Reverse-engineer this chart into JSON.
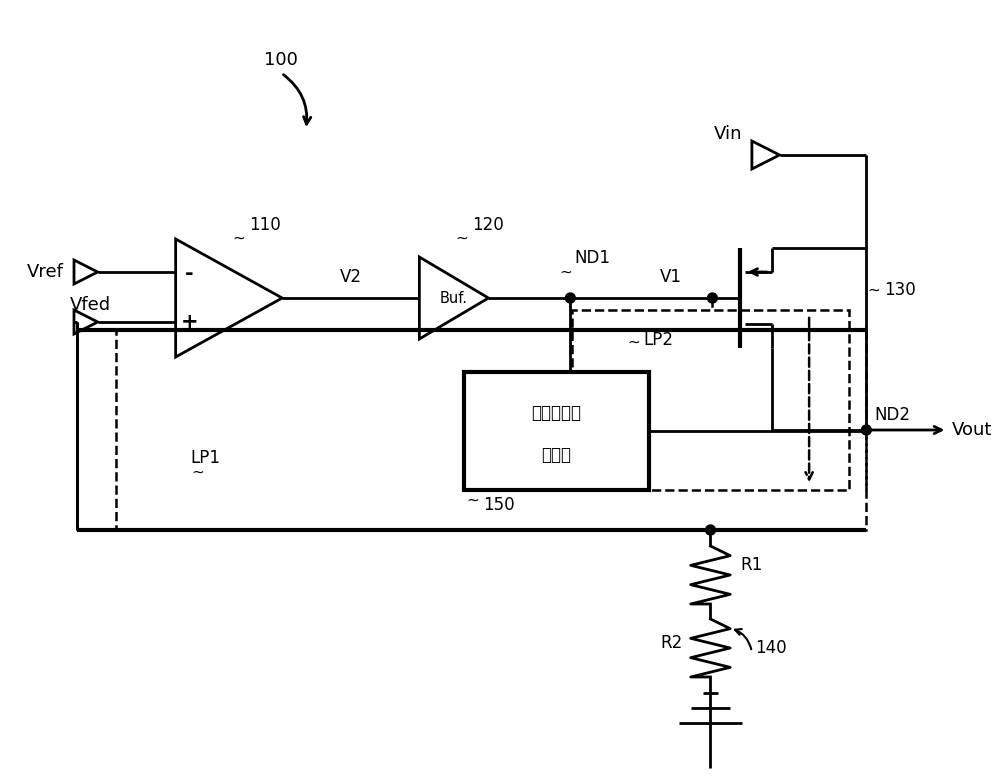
{
  "bg": "#ffffff",
  "figsize": [
    10.0,
    7.79
  ],
  "dpi": 100,
  "labels": {
    "r100": "100",
    "r110": "110",
    "r120": "120",
    "nd1": "ND1",
    "nd2": "ND2",
    "v1": "V1",
    "v2": "V2",
    "vin": "Vin",
    "vref": "Vref",
    "vfed": "Vfed",
    "vout": "Vout",
    "lp1": "LP1",
    "lp2": "LP2",
    "r130": "130",
    "r150": "150",
    "box1": "快速推挤式",
    "box2": "驱动器",
    "r1": "R1",
    "r2": "R2",
    "r140": "140"
  }
}
